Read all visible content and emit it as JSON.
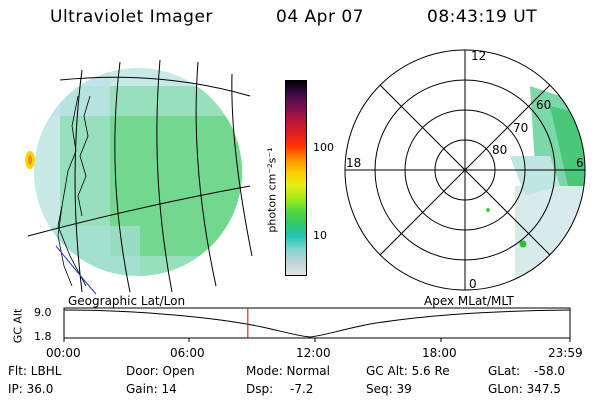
{
  "header": {
    "title": "Ultraviolet Imager",
    "date": "04 Apr 07",
    "time": "08:43:19 UT"
  },
  "colorbar": {
    "unit_label": "photon cm⁻²s⁻¹",
    "ticks": [
      "100",
      "10"
    ],
    "colors": [
      "#e0e6e6",
      "#bdd4d4",
      "#7ed6ce",
      "#23c4b4",
      "#32c864",
      "#58da3a",
      "#aaea1c",
      "#eaee14",
      "#ffc800",
      "#ff8c00",
      "#ff3200",
      "#dc1e1e",
      "#b4143c",
      "#781050",
      "#3c0a46",
      "#000000"
    ]
  },
  "polar": {
    "labels": [
      "12",
      "18",
      "6",
      "0",
      "60",
      "70",
      "80"
    ]
  },
  "panel_labels": {
    "left": "Geographic Lat/Lon",
    "right": "Apex MLat/MLT"
  },
  "altitude_plot": {
    "ylabel": "GC Alt",
    "yticks": [
      "9.0",
      "1.8"
    ],
    "xticks": [
      "00:00",
      "06:00",
      "12:00",
      "18:00",
      "23:59"
    ],
    "current_time_hours": 8.72
  },
  "info": {
    "flt": "Flt: LBHL",
    "ip": "IP: 36.0",
    "door": "Door: Open",
    "gain": "Gain: 14",
    "mode": "Mode: Normal",
    "dsp_label": "Dsp:",
    "dsp_value": "-7.2",
    "gc_alt": "GC Alt: 5.6 Re",
    "seq": "Seq: 39",
    "glat_label": "GLat:",
    "glat_value": "-58.0",
    "glon": "GLon: 347.5"
  }
}
